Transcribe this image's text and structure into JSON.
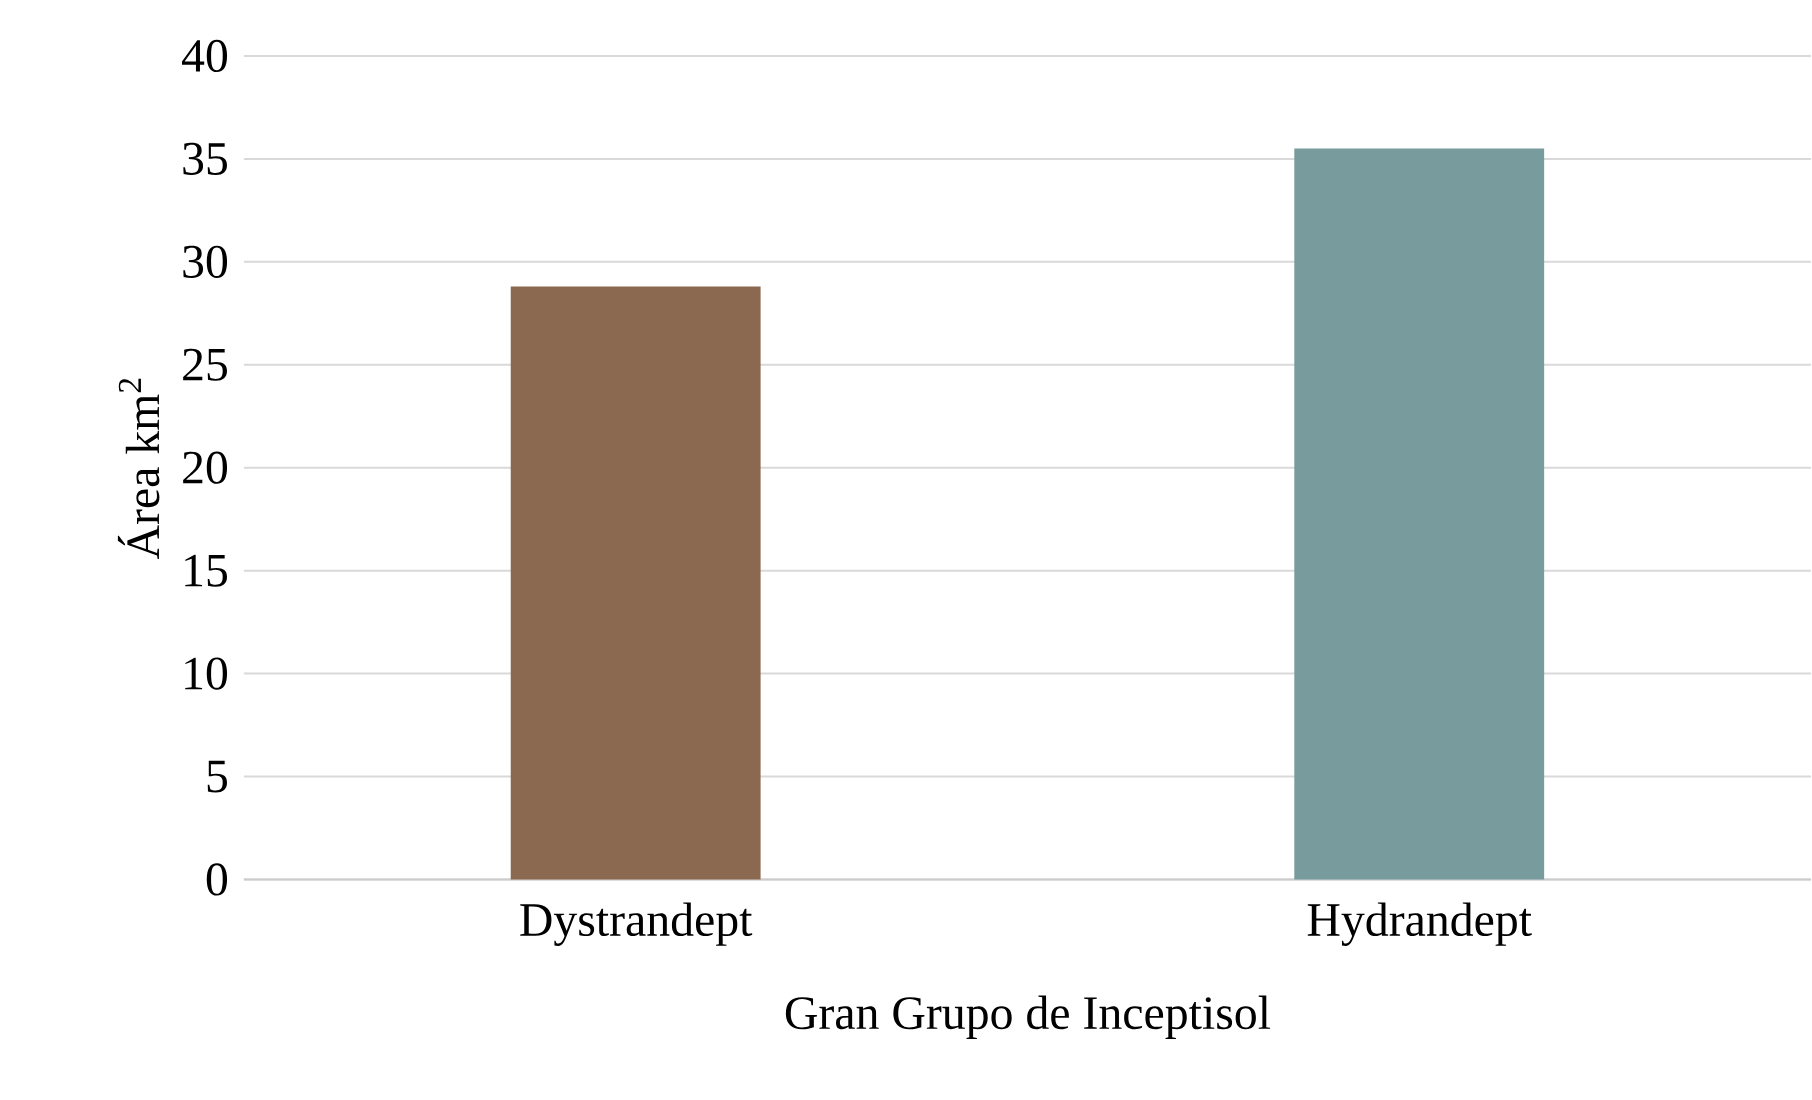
{
  "chart_data": {
    "type": "bar",
    "xlabel": "Gran Grupo de  Inceptisol",
    "ylabel": "Área km$^{2}$",
    "categories": [
      "Dystrandept",
      "Hydrandept"
    ],
    "values": [
      28.8,
      35.5
    ],
    "colors": [
      "#8b6850",
      "#789b9e"
    ],
    "ylim": [
      0,
      40
    ],
    "yticks": [
      0,
      5,
      10,
      15,
      20,
      25,
      30,
      35,
      40
    ],
    "grid": "y"
  }
}
